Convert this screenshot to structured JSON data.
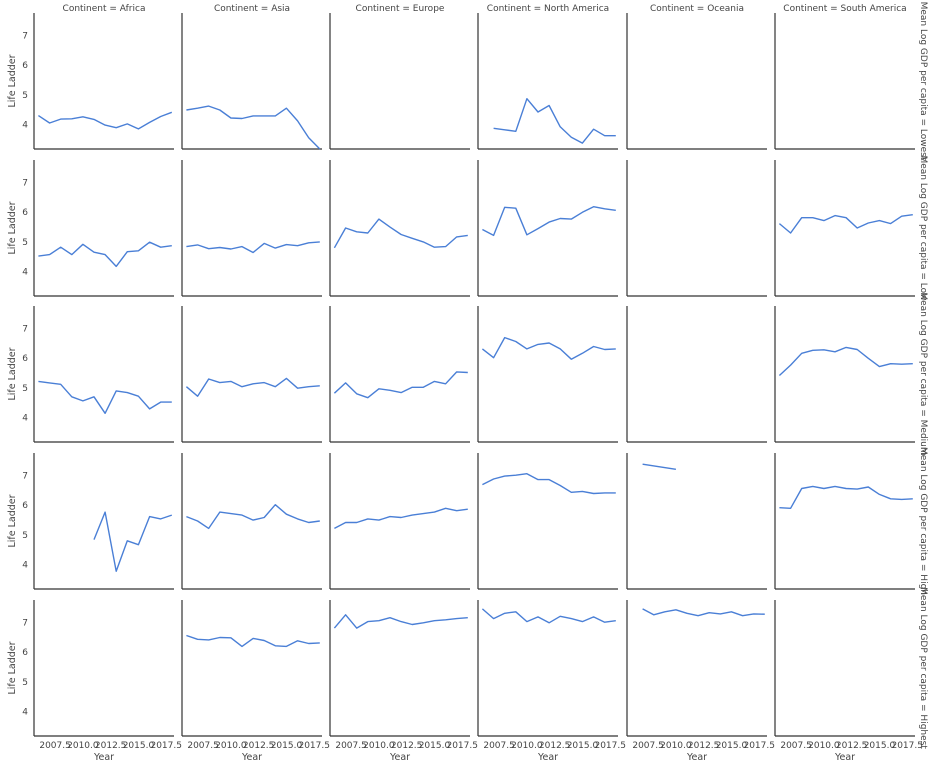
{
  "chart_data": {
    "type": "line",
    "layout": "facet-grid",
    "col_facet_prefix": "Continent = ",
    "row_facet_prefix": "Mean Log GDP per capita = ",
    "columns": [
      "Africa",
      "Asia",
      "Europe",
      "North America",
      "Oceania",
      "South America"
    ],
    "rows": [
      "Lowest",
      "Low",
      "Medium",
      "High",
      "Highest"
    ],
    "xlabel": "Year",
    "ylabel": "Life Ladder",
    "xlim": [
      2005.6,
      2018.2
    ],
    "ylim": [
      3.15,
      7.75
    ],
    "xticks": [
      2007.5,
      2010.0,
      2012.5,
      2015.0,
      2017.5
    ],
    "xtick_labels": [
      "2007.5",
      "2010.0",
      "2012.5",
      "2015.0",
      "2017.5"
    ],
    "yticks": [
      4,
      5,
      6,
      7
    ],
    "ytick_labels": [
      "4",
      "5",
      "6",
      "7"
    ],
    "line_color": "#4a7fd6",
    "grid": false,
    "panels": [
      [
        {
          "x": [
            2006,
            2007,
            2008,
            2009,
            2010,
            2011,
            2012,
            2013,
            2014,
            2015,
            2016,
            2017,
            2018
          ],
          "y": [
            4.28,
            4.03,
            4.16,
            4.17,
            4.24,
            4.15,
            3.96,
            3.87,
            4.0,
            3.83,
            4.05,
            4.25,
            4.39
          ]
        },
        {
          "x": [
            2006,
            2007,
            2008,
            2009,
            2010,
            2011,
            2012,
            2013,
            2014,
            2015,
            2016,
            2017,
            2018
          ],
          "y": [
            4.47,
            4.53,
            4.6,
            4.47,
            4.2,
            4.18,
            4.27,
            4.27,
            4.27,
            4.53,
            4.1,
            3.53,
            3.15
          ]
        },
        {
          "x": [],
          "y": []
        },
        {
          "x": [
            2007,
            2008,
            2009,
            2010,
            2011,
            2012,
            2013,
            2014,
            2015,
            2016,
            2017,
            2018
          ],
          "y": [
            3.85,
            3.8,
            3.75,
            4.85,
            4.4,
            4.62,
            3.9,
            3.55,
            3.35,
            3.82,
            3.6,
            3.6
          ]
        },
        {
          "x": [],
          "y": []
        },
        {
          "x": [],
          "y": []
        }
      ],
      [
        {
          "x": [
            2006,
            2007,
            2008,
            2009,
            2010,
            2011,
            2012,
            2013,
            2014,
            2015,
            2016,
            2017,
            2018
          ],
          "y": [
            4.5,
            4.55,
            4.8,
            4.55,
            4.9,
            4.63,
            4.55,
            4.15,
            4.65,
            4.68,
            4.97,
            4.8,
            4.85
          ]
        },
        {
          "x": [
            2006,
            2007,
            2008,
            2009,
            2010,
            2011,
            2012,
            2013,
            2014,
            2015,
            2016,
            2017,
            2018
          ],
          "y": [
            4.82,
            4.88,
            4.75,
            4.79,
            4.74,
            4.82,
            4.62,
            4.93,
            4.77,
            4.89,
            4.85,
            4.95,
            4.98
          ]
        },
        {
          "x": [
            2006,
            2007,
            2008,
            2009,
            2010,
            2011,
            2012,
            2013,
            2014,
            2015,
            2016,
            2017,
            2018
          ],
          "y": [
            4.78,
            5.45,
            5.32,
            5.28,
            5.75,
            5.48,
            5.23,
            5.1,
            4.98,
            4.8,
            4.82,
            5.15,
            5.2
          ]
        },
        {
          "x": [
            2006,
            2007,
            2008,
            2009,
            2010,
            2011,
            2012,
            2013,
            2014,
            2015,
            2016,
            2017,
            2018
          ],
          "y": [
            5.4,
            5.2,
            6.15,
            6.12,
            5.22,
            5.43,
            5.65,
            5.77,
            5.75,
            5.98,
            6.17,
            6.1,
            6.05
          ]
        },
        {
          "x": [],
          "y": []
        },
        {
          "x": [
            2006,
            2007,
            2008,
            2009,
            2010,
            2011,
            2012,
            2013,
            2014,
            2015,
            2016,
            2017,
            2018
          ],
          "y": [
            5.6,
            5.28,
            5.8,
            5.8,
            5.7,
            5.87,
            5.8,
            5.45,
            5.62,
            5.7,
            5.6,
            5.85,
            5.9
          ]
        }
      ],
      [
        {
          "x": [
            2006,
            2007,
            2008,
            2009,
            2010,
            2011,
            2012,
            2013,
            2014,
            2015,
            2016,
            2017,
            2018
          ],
          "y": [
            5.2,
            5.15,
            5.1,
            4.68,
            4.54,
            4.68,
            4.12,
            4.88,
            4.82,
            4.7,
            4.27,
            4.5,
            4.5
          ]
        },
        {
          "x": [
            2006,
            2007,
            2008,
            2009,
            2010,
            2011,
            2012,
            2013,
            2014,
            2015,
            2016,
            2017,
            2018
          ],
          "y": [
            5.02,
            4.7,
            5.28,
            5.16,
            5.2,
            5.02,
            5.12,
            5.16,
            5.02,
            5.3,
            4.97,
            5.02,
            5.05
          ]
        },
        {
          "x": [
            2006,
            2007,
            2008,
            2009,
            2010,
            2011,
            2012,
            2013,
            2014,
            2015,
            2016,
            2017,
            2018
          ],
          "y": [
            4.8,
            5.15,
            4.78,
            4.65,
            4.95,
            4.9,
            4.82,
            5.0,
            5.0,
            5.2,
            5.12,
            5.52,
            5.5
          ]
        },
        {
          "x": [
            2006,
            2007,
            2008,
            2009,
            2010,
            2011,
            2012,
            2013,
            2014,
            2015,
            2016,
            2017,
            2018
          ],
          "y": [
            6.3,
            6.0,
            6.68,
            6.55,
            6.3,
            6.45,
            6.5,
            6.3,
            5.95,
            6.15,
            6.38,
            6.28,
            6.3
          ]
        },
        {
          "x": [],
          "y": []
        },
        {
          "x": [
            2006,
            2007,
            2008,
            2009,
            2010,
            2011,
            2012,
            2013,
            2014,
            2015,
            2016,
            2017,
            2018
          ],
          "y": [
            5.4,
            5.75,
            6.15,
            6.25,
            6.27,
            6.2,
            6.35,
            6.28,
            5.98,
            5.7,
            5.8,
            5.78,
            5.8
          ]
        }
      ],
      [
        {
          "x": [
            2011,
            2012,
            2013,
            2014,
            2015,
            2016,
            2017,
            2018
          ],
          "y": [
            4.82,
            5.75,
            3.75,
            4.78,
            4.65,
            5.6,
            5.52,
            5.65
          ]
        },
        {
          "x": [
            2006,
            2007,
            2008,
            2009,
            2010,
            2011,
            2012,
            2013,
            2014,
            2015,
            2016,
            2017,
            2018
          ],
          "y": [
            5.6,
            5.45,
            5.2,
            5.75,
            5.7,
            5.65,
            5.48,
            5.57,
            6.0,
            5.68,
            5.52,
            5.4,
            5.45
          ]
        },
        {
          "x": [
            2006,
            2007,
            2008,
            2009,
            2010,
            2011,
            2012,
            2013,
            2014,
            2015,
            2016,
            2017,
            2018
          ],
          "y": [
            5.2,
            5.4,
            5.4,
            5.52,
            5.48,
            5.6,
            5.57,
            5.65,
            5.7,
            5.75,
            5.88,
            5.8,
            5.85
          ]
        },
        {
          "x": [
            2006,
            2007,
            2008,
            2009,
            2010,
            2011,
            2012,
            2013,
            2014,
            2015,
            2016,
            2017,
            2018
          ],
          "y": [
            6.68,
            6.87,
            6.97,
            7.0,
            7.05,
            6.85,
            6.85,
            6.65,
            6.42,
            6.45,
            6.38,
            6.4,
            6.4
          ]
        },
        {
          "x": [
            2007,
            2010
          ],
          "y": [
            7.37,
            7.2
          ]
        },
        {
          "x": [
            2006,
            2007,
            2008,
            2009,
            2010,
            2011,
            2012,
            2013,
            2014,
            2015,
            2016,
            2017,
            2018
          ],
          "y": [
            5.9,
            5.88,
            6.55,
            6.62,
            6.55,
            6.62,
            6.55,
            6.53,
            6.6,
            6.35,
            6.2,
            6.18,
            6.2
          ]
        }
      ],
      [
        {
          "x": [],
          "y": []
        },
        {
          "x": [
            2006,
            2007,
            2008,
            2009,
            2010,
            2011,
            2012,
            2013,
            2014,
            2015,
            2016,
            2017,
            2018
          ],
          "y": [
            6.55,
            6.42,
            6.4,
            6.48,
            6.47,
            6.18,
            6.45,
            6.38,
            6.2,
            6.18,
            6.37,
            6.28,
            6.3
          ]
        },
        {
          "x": [
            2006,
            2007,
            2008,
            2009,
            2010,
            2011,
            2012,
            2013,
            2014,
            2015,
            2016,
            2017,
            2018
          ],
          "y": [
            6.8,
            7.25,
            6.8,
            7.02,
            7.05,
            7.15,
            7.02,
            6.92,
            6.98,
            7.05,
            7.08,
            7.12,
            7.15
          ]
        },
        {
          "x": [
            2006,
            2007,
            2008,
            2009,
            2010,
            2011,
            2012,
            2013,
            2014,
            2015,
            2016,
            2017,
            2018
          ],
          "y": [
            7.45,
            7.12,
            7.3,
            7.35,
            7.02,
            7.18,
            6.98,
            7.2,
            7.12,
            7.02,
            7.18,
            7.0,
            7.05
          ]
        },
        {
          "x": [
            2007,
            2008,
            2009,
            2010,
            2011,
            2012,
            2013,
            2014,
            2015,
            2016,
            2017,
            2018
          ],
          "y": [
            7.45,
            7.25,
            7.35,
            7.42,
            7.3,
            7.22,
            7.32,
            7.28,
            7.35,
            7.22,
            7.28,
            7.27
          ]
        },
        {
          "x": [],
          "y": []
        }
      ]
    ]
  }
}
